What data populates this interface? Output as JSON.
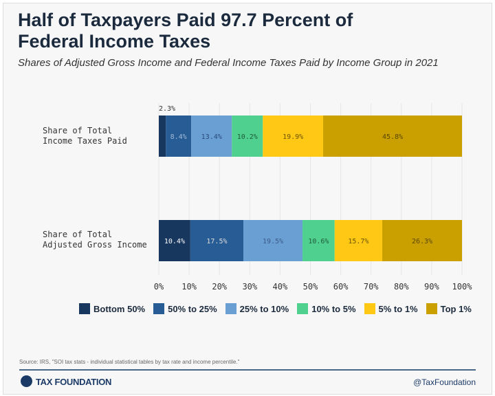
{
  "chart_data": {
    "type": "bar",
    "orientation": "horizontal-stacked",
    "title": "Half of Taxpayers Paid 97.7 Percent of Federal Income Taxes",
    "subtitle": "Shares of Adjusted Gross Income and Federal Income Taxes Paid by Income Group in 2021",
    "categories": [
      "Share of Total Income Taxes Paid",
      "Share of Total Adjusted Gross Income"
    ],
    "series": [
      {
        "name": "Bottom 50%",
        "color": "#17375e",
        "values": [
          2.3,
          10.4
        ],
        "labels": [
          "2.3%",
          "10.4%"
        ]
      },
      {
        "name": "50% to 25%",
        "color": "#285c94",
        "values": [
          8.4,
          17.5
        ],
        "labels": [
          "8.4%",
          "17.5%"
        ]
      },
      {
        "name": "25% to 10%",
        "color": "#6a9fd4",
        "values": [
          13.4,
          19.5
        ],
        "labels": [
          "13.4%",
          "19.5%"
        ]
      },
      {
        "name": "10% to 5%",
        "color": "#4fd08f",
        "values": [
          10.2,
          10.6
        ],
        "labels": [
          "10.2%",
          "10.6%"
        ]
      },
      {
        "name": "5% to 1%",
        "color": "#ffc815",
        "values": [
          19.9,
          15.7
        ],
        "labels": [
          "19.9%",
          "15.7%"
        ]
      },
      {
        "name": "Top 1%",
        "color": "#c9a000",
        "values": [
          45.8,
          26.3
        ],
        "labels": [
          "45.8%",
          "26.3%"
        ]
      }
    ],
    "xlim": [
      0,
      100
    ],
    "xticks": [
      "0%",
      "10%",
      "20%",
      "30%",
      "40%",
      "50%",
      "60%",
      "70%",
      "80%",
      "90%",
      "100%"
    ],
    "grid": true,
    "legend": "bottom"
  },
  "rowlabels": [
    [
      "Share of Total",
      "Income Taxes Paid"
    ],
    [
      "Share of Total",
      "Adjusted Gross Income"
    ]
  ],
  "source": "Source: IRS, \"SOI tax stats - individual statistical tables by tax rate and income percentile.\"",
  "brand": "TAX FOUNDATION",
  "handle": "@TaxFoundation"
}
